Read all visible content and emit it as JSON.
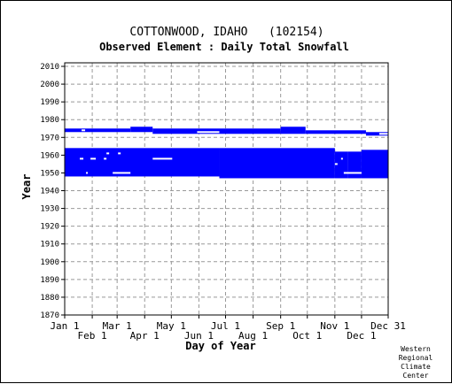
{
  "chart_data": {
    "type": "scatter",
    "title": "COTTONWOOD, IDAHO   (102154)",
    "subtitle": "Observed Element : Daily Total Snowfall",
    "xlabel": "Day of Year",
    "ylabel": "Year",
    "xlim": [
      1,
      365
    ],
    "ylim": [
      1870,
      2012
    ],
    "grid": true,
    "series_color": "#0000ff",
    "x_ticks_top_row": [
      {
        "label": "Jan 1",
        "day": 1
      },
      {
        "label": "Mar 1",
        "day": 60
      },
      {
        "label": "May 1",
        "day": 121
      },
      {
        "label": "Jul 1",
        "day": 182
      },
      {
        "label": "Sep 1",
        "day": 244
      },
      {
        "label": "Nov 1",
        "day": 305
      },
      {
        "label": "Dec 31",
        "day": 365
      }
    ],
    "x_ticks_bottom_row": [
      {
        "label": "Feb 1",
        "day": 32
      },
      {
        "label": "Apr 1",
        "day": 91
      },
      {
        "label": "Jun 1",
        "day": 152
      },
      {
        "label": "Aug 1",
        "day": 213
      },
      {
        "label": "Oct 1",
        "day": 274
      },
      {
        "label": "Dec 1",
        "day": 335
      }
    ],
    "y_ticks": [
      1870,
      1880,
      1890,
      1900,
      1910,
      1920,
      1930,
      1940,
      1950,
      1960,
      1970,
      1980,
      1990,
      2000,
      2010
    ],
    "data_blocks": [
      {
        "x_start": 1,
        "x_end": 75,
        "y_start": 1973,
        "y_end": 1975
      },
      {
        "x_start": 75,
        "x_end": 100,
        "y_start": 1973,
        "y_end": 1976
      },
      {
        "x_start": 100,
        "x_end": 244,
        "y_start": 1972,
        "y_end": 1975
      },
      {
        "x_start": 244,
        "x_end": 272,
        "y_start": 1972,
        "y_end": 1976
      },
      {
        "x_start": 272,
        "x_end": 340,
        "y_start": 1972,
        "y_end": 1974
      },
      {
        "x_start": 340,
        "x_end": 365,
        "y_start": 1971,
        "y_end": 1973
      },
      {
        "x_start": 1,
        "x_end": 175,
        "y_start": 1948,
        "y_end": 1964
      },
      {
        "x_start": 175,
        "x_end": 305,
        "y_start": 1947,
        "y_end": 1964
      },
      {
        "x_start": 305,
        "x_end": 320,
        "y_start": 1947,
        "y_end": 1962
      },
      {
        "x_start": 320,
        "x_end": 335,
        "y_start": 1947,
        "y_end": 1962
      },
      {
        "x_start": 335,
        "x_end": 365,
        "y_start": 1947,
        "y_end": 1963
      }
    ],
    "data_gaps": [
      {
        "x_start": 20,
        "x_end": 24,
        "y": 1974
      },
      {
        "x_start": 150,
        "x_end": 175,
        "y": 1973
      },
      {
        "x_start": 355,
        "x_end": 365,
        "y": 1972
      },
      {
        "x_start": 100,
        "x_end": 122,
        "y": 1958
      },
      {
        "x_start": 55,
        "x_end": 75,
        "y": 1950
      },
      {
        "x_start": 315,
        "x_end": 335,
        "y": 1950
      },
      {
        "x_start": 18,
        "x_end": 22,
        "y": 1958
      },
      {
        "x_start": 30,
        "x_end": 36,
        "y": 1958
      },
      {
        "x_start": 45,
        "x_end": 48,
        "y": 1958
      },
      {
        "x_start": 25,
        "x_end": 27,
        "y": 1950
      },
      {
        "x_start": 48,
        "x_end": 51,
        "y": 1961
      },
      {
        "x_start": 61,
        "x_end": 64,
        "y": 1961
      },
      {
        "x_start": 305,
        "x_end": 308,
        "y": 1955
      },
      {
        "x_start": 312,
        "x_end": 314,
        "y": 1958
      }
    ]
  },
  "credit": [
    "Western",
    "Regional",
    "Climate",
    "Center"
  ]
}
